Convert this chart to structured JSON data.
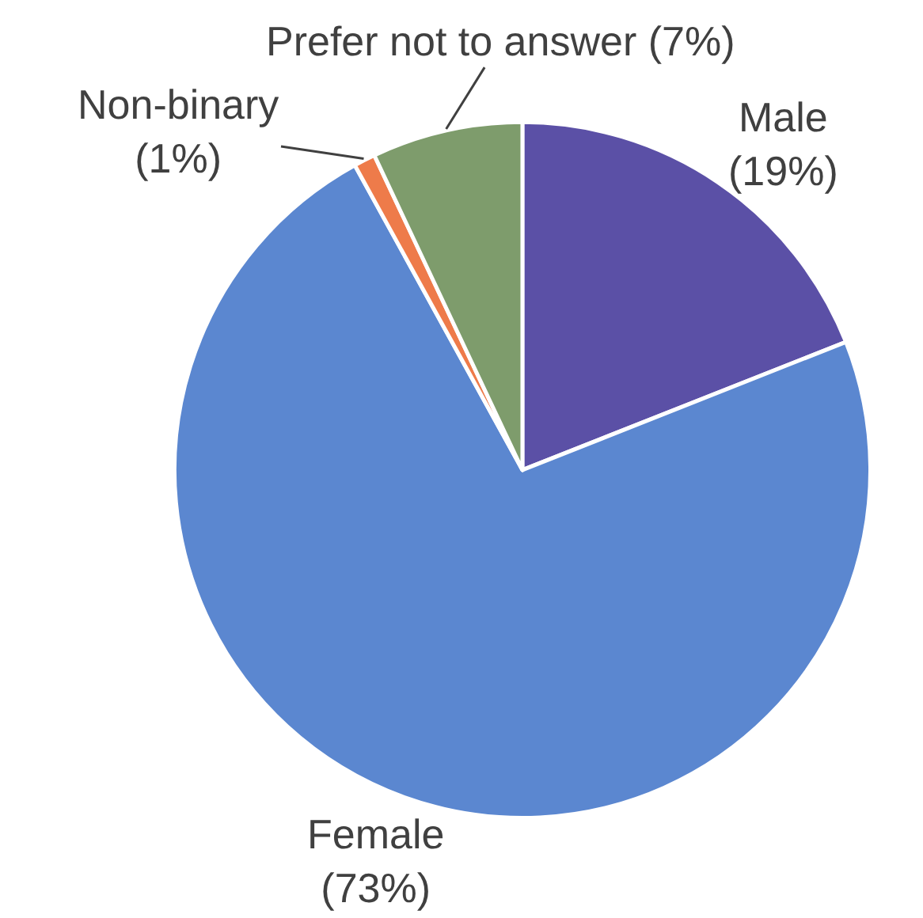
{
  "chart_data": {
    "type": "pie",
    "categories": [
      "Male",
      "Female",
      "Non-binary",
      "Prefer not to answer"
    ],
    "values": [
      19,
      73,
      1,
      7
    ],
    "value_labels": [
      "(19%)",
      "(73%)",
      "(1%)",
      "(7%)"
    ],
    "colors": [
      "#5b50a6",
      "#5b87d0",
      "#ee7b4a",
      "#7e9c6c"
    ],
    "legend": false
  }
}
